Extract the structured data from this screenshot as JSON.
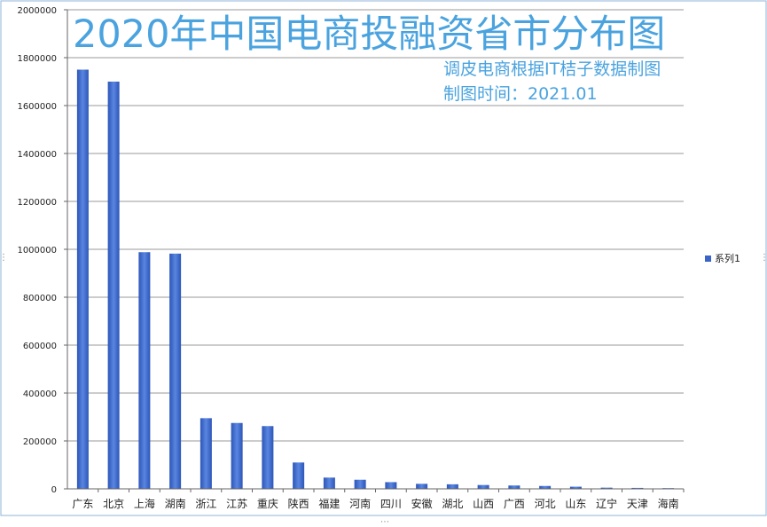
{
  "chart_data": {
    "type": "bar",
    "title": "2020年中国电商投融资省市分布图",
    "subtitle_lines": [
      "调皮电商根据IT桔子数据制图",
      "制图时间：2021.01"
    ],
    "categories": [
      "广东",
      "北京",
      "上海",
      "湖南",
      "浙江",
      "江苏",
      "重庆",
      "陕西",
      "福建",
      "河南",
      "四川",
      "安徽",
      "湖北",
      "山西",
      "广西",
      "河北",
      "山东",
      "辽宁",
      "天津",
      "海南"
    ],
    "series": [
      {
        "name": "系列1",
        "values": [
          1750000,
          1700000,
          988000,
          982000,
          295000,
          275000,
          262000,
          110000,
          47000,
          38000,
          28000,
          21000,
          19000,
          16000,
          14000,
          12000,
          9000,
          5000,
          4000,
          3000
        ]
      }
    ],
    "ylim": [
      0,
      2000000
    ],
    "yticks": [
      0,
      200000,
      400000,
      600000,
      800000,
      1000000,
      1200000,
      1400000,
      1600000,
      1800000,
      2000000
    ],
    "grid": true,
    "legend_position": "right",
    "bar_color": "#3a64c8"
  }
}
